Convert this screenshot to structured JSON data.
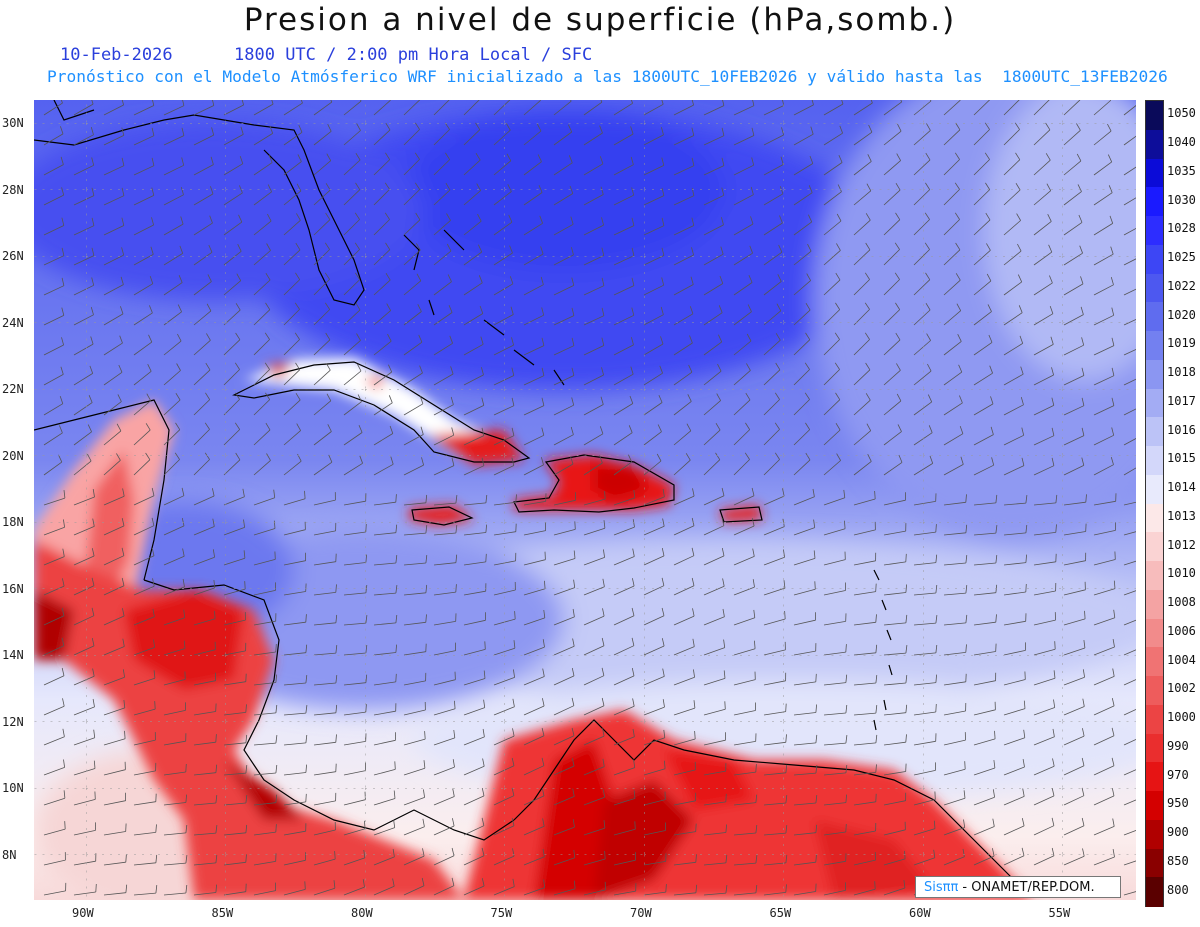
{
  "header": {
    "title": "Presion a nivel de superficie (hPa,somb.)",
    "date": "10-Feb-2026",
    "time": "1800 UTC / 2:00 pm Hora Local / SFC",
    "forecast": "Pronóstico con el Modelo Atmósferico WRF inicializado a las 1800UTC_10FEB2026 y válido hasta las  1800UTC_13FEB2026"
  },
  "axes": {
    "lat_labels": [
      "30N",
      "28N",
      "26N",
      "24N",
      "22N",
      "20N",
      "18N",
      "16N",
      "14N",
      "12N",
      "10N",
      "8N"
    ],
    "lon_labels": [
      "90W",
      "85W",
      "80W",
      "75W",
      "70W",
      "65W",
      "60W",
      "55W"
    ]
  },
  "colorbar": {
    "labels": [
      "1050",
      "1040",
      "1035",
      "1030",
      "1028",
      "1025",
      "1022",
      "1020",
      "1019",
      "1018",
      "1017",
      "1016",
      "1015",
      "1014",
      "1013",
      "1012",
      "1010",
      "1008",
      "1006",
      "1004",
      "1002",
      "1000",
      "990",
      "970",
      "950",
      "900",
      "850",
      "800"
    ],
    "colors": [
      "#0a0a5a",
      "#0d0d9a",
      "#0b0bd8",
      "#1a1aff",
      "#2d2dff",
      "#3d46f5",
      "#4d58f0",
      "#5f6cef",
      "#7380f0",
      "#8b96f2",
      "#a3acf4",
      "#bcc3f7",
      "#d3d7fa",
      "#e8eafc",
      "#fce8e8",
      "#fad3d3",
      "#f7bcbc",
      "#f4a3a3",
      "#f28b8b",
      "#f07373",
      "#ee5c5c",
      "#ec4444",
      "#ea2e2e",
      "#e61414",
      "#d40000",
      "#b00000",
      "#8a0000",
      "#5a0000"
    ]
  },
  "credit": {
    "sis": "Sisππ",
    "rest": " - ONAMET/REP.DOM."
  }
}
